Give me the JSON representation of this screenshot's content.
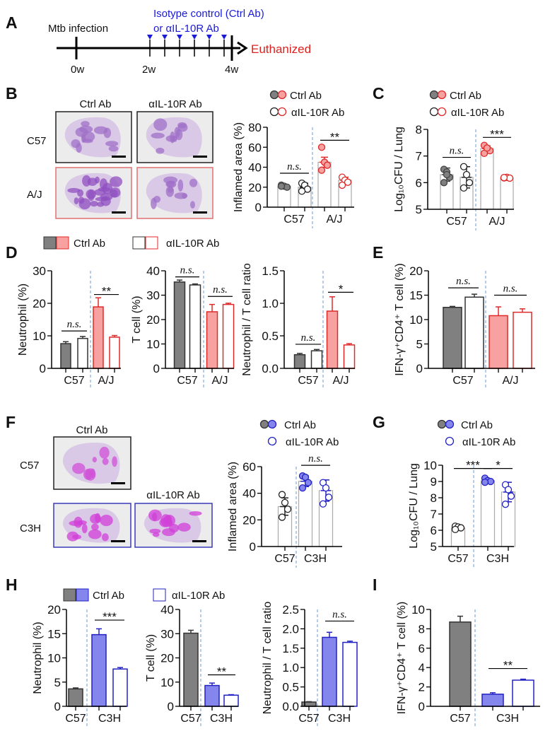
{
  "panel_letters": [
    "A",
    "B",
    "C",
    "D",
    "E",
    "F",
    "G",
    "H",
    "I"
  ],
  "timeline": {
    "infection_label": "Mtb infection",
    "treatment_line1": "Isotype control (Ctrl Ab)",
    "treatment_line2": "or αIL-10R Ab",
    "end_label": "Euthanized",
    "ticks": [
      "0w",
      "2w",
      "4w"
    ],
    "colors": {
      "treatment": "#1a1adb",
      "end": "#e0201e"
    }
  },
  "histology_B": {
    "col_labels": [
      "Ctrl Ab",
      "αIL-10R Ab"
    ],
    "row_labels": [
      "C57",
      "A/J"
    ]
  },
  "histology_F": {
    "ctrl_label": "Ctrl Ab",
    "anti_label": "αIL-10R Ab",
    "row_labels": [
      "C57",
      "C3H"
    ]
  },
  "legends": {
    "B": [
      "Ctrl Ab",
      "αIL-10R Ab"
    ],
    "C": [
      "Ctrl Ab",
      "αIL-10R Ab"
    ],
    "D": [
      "Ctrl Ab",
      "αIL-10R Ab"
    ],
    "F": [
      "Ctrl Ab",
      "αIL-10R Ab"
    ],
    "G": [
      "Ctrl Ab",
      "αIL-10R Ab"
    ],
    "H": [
      "Ctrl Ab",
      "αIL-10R Ab"
    ]
  },
  "colors": {
    "c57_ctrl": "#808080",
    "aj_fill": "#f7a1a1",
    "aj_stroke": "#e02a2a",
    "c3h_fill": "#8585ee",
    "c3h_stroke": "#2222c4",
    "divider": "#6b9bd1"
  },
  "chart_data": [
    {
      "id": "B",
      "type": "bar",
      "style": "dots",
      "ylabel": "Inflamed area  (%)",
      "ylim": [
        0,
        80
      ],
      "yticks": [
        "0",
        "20",
        "40",
        "60",
        "80"
      ],
      "categories": [
        "C57",
        "A/J"
      ],
      "bars": [
        {
          "group": "C57",
          "series": "Ctrl Ab",
          "value": 21,
          "err": 1,
          "color": "#444444",
          "fill": "#808080",
          "points": [
            22,
            21,
            20,
            21
          ]
        },
        {
          "group": "C57",
          "series": "αIL-10R Ab",
          "value": 20,
          "err": 4,
          "color": "#222222",
          "fill": "#ffffff",
          "points": [
            24,
            22,
            18,
            16
          ]
        },
        {
          "group": "A/J",
          "series": "Ctrl Ab",
          "value": 45,
          "err": 5,
          "color": "#e02a2a",
          "fill": "#f7a1a1",
          "points": [
            60,
            45,
            42,
            37
          ]
        },
        {
          "group": "A/J",
          "series": "αIL-10R Ab",
          "value": 27,
          "err": 3,
          "color": "#e02a2a",
          "fill": "#ffffff",
          "points": [
            30,
            27,
            25,
            22
          ]
        }
      ],
      "significance": [
        {
          "from": 0,
          "to": 1,
          "y": 34,
          "label": "n.s."
        },
        {
          "from": 2,
          "to": 3,
          "y": 67,
          "label": "**"
        }
      ]
    },
    {
      "id": "C",
      "type": "bar",
      "style": "dots",
      "ylabel": "Log₁₀CFU / Lung",
      "ylim": [
        5,
        8
      ],
      "yticks": [
        "5",
        "6",
        "7",
        "8"
      ],
      "categories": [
        "C57",
        "A/J"
      ],
      "bars": [
        {
          "group": "C57",
          "series": "Ctrl Ab",
          "value": 6.3,
          "err": 0.25,
          "color": "#444444",
          "fill": "#808080",
          "points": [
            6.5,
            6.4,
            6.2,
            6.0,
            6.3
          ]
        },
        {
          "group": "C57",
          "series": "αIL-10R Ab",
          "value": 6.2,
          "err": 0.4,
          "color": "#222222",
          "fill": "#ffffff",
          "points": [
            6.6,
            6.3,
            6.0,
            5.8
          ]
        },
        {
          "group": "A/J",
          "series": "Ctrl Ab",
          "value": 7.28,
          "err": 0.1,
          "color": "#e02a2a",
          "fill": "#f7a1a1",
          "points": [
            7.4,
            7.3,
            7.2,
            7.1,
            7.3
          ]
        },
        {
          "group": "A/J",
          "series": "αIL-10R Ab",
          "value": 6.18,
          "err": 0.02,
          "color": "#e02a2a",
          "fill": "#ffffff",
          "points": [
            6.18,
            6.2,
            6.17,
            6.19
          ]
        }
      ],
      "significance": [
        {
          "from": 0,
          "to": 1,
          "y": 6.95,
          "label": "n.s."
        },
        {
          "from": 2,
          "to": 3,
          "y": 7.7,
          "label": "***"
        }
      ]
    },
    {
      "id": "D1",
      "type": "bar",
      "style": "solid",
      "ylabel": "Neutrophil (%)",
      "ylim": [
        0,
        30
      ],
      "yticks": [
        "0",
        "10",
        "20",
        "30"
      ],
      "categories": [
        "C57",
        "A/J"
      ],
      "bars": [
        {
          "group": "C57",
          "series": "Ctrl Ab",
          "value": 7.6,
          "err": 0.6,
          "color": "#333333",
          "fill": "#808080"
        },
        {
          "group": "C57",
          "series": "αIL-10R Ab",
          "value": 9.2,
          "err": 0.6,
          "color": "#333333",
          "fill": "#ffffff"
        },
        {
          "group": "A/J",
          "series": "Ctrl Ab",
          "value": 18.9,
          "err": 2.8,
          "color": "#e02a2a",
          "fill": "#f7a1a1"
        },
        {
          "group": "A/J",
          "series": "αIL-10R Ab",
          "value": 9.6,
          "err": 0.5,
          "color": "#e02a2a",
          "fill": "#ffffff"
        }
      ],
      "significance": [
        {
          "from": 0,
          "to": 1,
          "y": 11.5,
          "label": "n.s."
        },
        {
          "from": 2,
          "to": 3,
          "y": 22.7,
          "label": "**"
        }
      ]
    },
    {
      "id": "D2",
      "type": "bar",
      "style": "solid",
      "ylabel": "T cell (%)",
      "ylim": [
        0,
        40
      ],
      "yticks": [
        "0",
        "10",
        "20",
        "30",
        "40"
      ],
      "categories": [
        "C57",
        "A/J"
      ],
      "bars": [
        {
          "group": "C57",
          "series": "Ctrl Ab",
          "value": 35.4,
          "err": 0.8,
          "color": "#333333",
          "fill": "#808080"
        },
        {
          "group": "C57",
          "series": "αIL-10R Ab",
          "value": 34.2,
          "err": 0.4,
          "color": "#333333",
          "fill": "#ffffff"
        },
        {
          "group": "A/J",
          "series": "Ctrl Ab",
          "value": 23.2,
          "err": 3.0,
          "color": "#e02a2a",
          "fill": "#f7a1a1"
        },
        {
          "group": "A/J",
          "series": "αIL-10R Ab",
          "value": 26.2,
          "err": 0.5,
          "color": "#e02a2a",
          "fill": "#ffffff"
        }
      ],
      "significance": [
        {
          "from": 0,
          "to": 1,
          "y": 37.5,
          "label": "n.s."
        },
        {
          "from": 2,
          "to": 3,
          "y": 29.5,
          "label": "n.s."
        }
      ]
    },
    {
      "id": "D3",
      "type": "bar",
      "style": "solid",
      "ylabel": "Neutrophil / T cell ratio",
      "ylim": [
        0,
        1.5
      ],
      "yticks": [
        "0.0",
        "0.5",
        "1.0",
        "1.5"
      ],
      "categories": [
        "C57",
        "A/J"
      ],
      "bars": [
        {
          "group": "C57",
          "series": "Ctrl Ab",
          "value": 0.21,
          "err": 0.02,
          "color": "#333333",
          "fill": "#808080"
        },
        {
          "group": "C57",
          "series": "αIL-10R Ab",
          "value": 0.27,
          "err": 0.02,
          "color": "#333333",
          "fill": "#ffffff"
        },
        {
          "group": "A/J",
          "series": "Ctrl Ab",
          "value": 0.88,
          "err": 0.22,
          "color": "#e02a2a",
          "fill": "#f7a1a1"
        },
        {
          "group": "A/J",
          "series": "αIL-10R Ab",
          "value": 0.36,
          "err": 0.02,
          "color": "#e02a2a",
          "fill": "#ffffff"
        }
      ],
      "significance": [
        {
          "from": 0,
          "to": 1,
          "y": 0.37,
          "label": "n.s."
        },
        {
          "from": 2,
          "to": 3,
          "y": 1.17,
          "label": "*"
        }
      ]
    },
    {
      "id": "E",
      "type": "bar",
      "style": "solid",
      "ylabel": "IFN-γ⁺CD4⁺ T cell (%)",
      "ylim": [
        0,
        20
      ],
      "yticks": [
        "0",
        "5",
        "10",
        "15",
        "20"
      ],
      "categories": [
        "C57",
        "A/J"
      ],
      "bars": [
        {
          "group": "C57",
          "series": "Ctrl Ab",
          "value": 12.5,
          "err": 0.2,
          "color": "#333333",
          "fill": "#808080"
        },
        {
          "group": "C57",
          "series": "αIL-10R Ab",
          "value": 14.6,
          "err": 0.6,
          "color": "#333333",
          "fill": "#ffffff"
        },
        {
          "group": "A/J",
          "series": "Ctrl Ab",
          "value": 10.8,
          "err": 1.8,
          "color": "#e02a2a",
          "fill": "#f7a1a1"
        },
        {
          "group": "A/J",
          "series": "αIL-10R Ab",
          "value": 11.5,
          "err": 0.7,
          "color": "#e02a2a",
          "fill": "#ffffff"
        }
      ],
      "significance": [
        {
          "from": 0,
          "to": 1,
          "y": 16.5,
          "label": "n.s."
        },
        {
          "from": 2,
          "to": 3,
          "y": 15.0,
          "label": "n.s."
        }
      ]
    },
    {
      "id": "F",
      "type": "bar",
      "style": "dots",
      "ylabel": "Inflamed area  (%)",
      "ylim": [
        0,
        60
      ],
      "yticks": [
        "0",
        "20",
        "40",
        "60"
      ],
      "categories": [
        "C57",
        "C3H"
      ],
      "bars": [
        {
          "group": "C57",
          "series": "Ctrl Ab",
          "value": 30,
          "err": 6.5,
          "color": "#222222",
          "fill": "#ffffff",
          "points": [
            39,
            33,
            28,
            22
          ]
        },
        {
          "group": "C3H",
          "series": "Ctrl Ab",
          "value": 49,
          "err": 4,
          "color": "#2222c4",
          "fill": "#8585ee",
          "points": [
            53,
            52,
            48,
            44
          ]
        },
        {
          "group": "C3H",
          "series": "αIL-10R Ab",
          "value": 42,
          "err": 8,
          "color": "#2222c4",
          "fill": "#ffffff",
          "points": [
            48,
            44,
            37,
            32
          ]
        }
      ],
      "significance": [
        {
          "from": 1,
          "to": 2,
          "y": 61,
          "label": "n.s."
        }
      ]
    },
    {
      "id": "G",
      "type": "bar",
      "style": "dots",
      "ylabel": "Log₁₀CFU / Lung",
      "ylim": [
        5,
        10
      ],
      "yticks": [
        "5",
        "6",
        "7",
        "8",
        "9",
        "10"
      ],
      "categories": [
        "C57",
        "C3H"
      ],
      "bars": [
        {
          "group": "C57",
          "series": "Ctrl Ab",
          "value": 6.15,
          "err": 0.1,
          "color": "#222222",
          "fill": "#ffffff",
          "points": [
            6.25,
            6.2,
            6.15,
            6.05
          ]
        },
        {
          "group": "C3H",
          "series": "Ctrl Ab",
          "value": 9.05,
          "err": 0.1,
          "color": "#2222c4",
          "fill": "#8585ee",
          "points": [
            9.2,
            9.05,
            9.0,
            8.95
          ]
        },
        {
          "group": "C3H",
          "series": "αIL-10R Ab",
          "value": 8.35,
          "err": 0.6,
          "color": "#2222c4",
          "fill": "#ffffff",
          "points": [
            8.8,
            8.5,
            8.1,
            7.6
          ]
        }
      ],
      "significance": [
        {
          "from": 0,
          "to": 1,
          "y": 9.8,
          "label": "***"
        },
        {
          "from": 1,
          "to": 2,
          "y": 9.8,
          "label": "*"
        }
      ]
    },
    {
      "id": "H1",
      "type": "bar",
      "style": "solid",
      "ylabel": "Neutrophil (%)",
      "ylim": [
        0,
        20
      ],
      "yticks": [
        "0",
        "5",
        "10",
        "15",
        "20"
      ],
      "categories": [
        "C57",
        "C3H"
      ],
      "bars": [
        {
          "group": "C57",
          "series": "Ctrl Ab",
          "value": 3.6,
          "err": 0.2,
          "color": "#333333",
          "fill": "#808080"
        },
        {
          "group": "C3H",
          "series": "Ctrl Ab",
          "value": 14.8,
          "err": 1.2,
          "color": "#2222c4",
          "fill": "#8585ee"
        },
        {
          "group": "C3H",
          "series": "αIL-10R Ab",
          "value": 7.7,
          "err": 0.3,
          "color": "#2222c4",
          "fill": "#ffffff"
        }
      ],
      "significance": [
        {
          "from": 1,
          "to": 2,
          "y": 17.8,
          "label": "***"
        }
      ]
    },
    {
      "id": "H2",
      "type": "bar",
      "style": "solid",
      "ylabel": "T cell  (%)",
      "ylim": [
        0,
        40
      ],
      "yticks": [
        "0",
        "10",
        "20",
        "30",
        "40"
      ],
      "categories": [
        "C57",
        "C3H"
      ],
      "bars": [
        {
          "group": "C57",
          "series": "Ctrl Ab",
          "value": 30.2,
          "err": 1.2,
          "color": "#333333",
          "fill": "#808080"
        },
        {
          "group": "C3H",
          "series": "Ctrl Ab",
          "value": 8.6,
          "err": 1.0,
          "color": "#2222c4",
          "fill": "#8585ee"
        },
        {
          "group": "C3H",
          "series": "αIL-10R Ab",
          "value": 4.6,
          "err": 0.2,
          "color": "#2222c4",
          "fill": "#ffffff"
        }
      ],
      "significance": [
        {
          "from": 1,
          "to": 2,
          "y": 13,
          "label": "**"
        }
      ]
    },
    {
      "id": "H3",
      "type": "bar",
      "style": "solid",
      "ylabel": "Neutrophil / T cell ratio",
      "ylim": [
        0,
        2.5
      ],
      "yticks": [
        "0.0",
        "0.5",
        "1.0",
        "1.5",
        "2.0",
        "2.5"
      ],
      "categories": [
        "C57",
        "C3H"
      ],
      "bars": [
        {
          "group": "C57",
          "series": "Ctrl Ab",
          "value": 0.11,
          "err": 0.01,
          "color": "#333333",
          "fill": "#808080"
        },
        {
          "group": "C3H",
          "series": "Ctrl Ab",
          "value": 1.78,
          "err": 0.13,
          "color": "#2222c4",
          "fill": "#8585ee"
        },
        {
          "group": "C3H",
          "series": "αIL-10R Ab",
          "value": 1.65,
          "err": 0.03,
          "color": "#2222c4",
          "fill": "#ffffff"
        }
      ],
      "significance": [
        {
          "from": 1,
          "to": 2,
          "y": 2.2,
          "label": "n.s."
        }
      ]
    },
    {
      "id": "I",
      "type": "bar",
      "style": "solid",
      "ylabel": "IFN-γ⁺CD4⁺ T cell (%)",
      "ylim": [
        0,
        10
      ],
      "yticks": [
        "0",
        "2",
        "4",
        "6",
        "8",
        "10"
      ],
      "categories": [
        "C57",
        "C3H"
      ],
      "bars": [
        {
          "group": "C57",
          "series": "Ctrl Ab",
          "value": 8.7,
          "err": 0.6,
          "color": "#333333",
          "fill": "#808080"
        },
        {
          "group": "C3H",
          "series": "Ctrl Ab",
          "value": 1.25,
          "err": 0.15,
          "color": "#2222c4",
          "fill": "#8585ee"
        },
        {
          "group": "C3H",
          "series": "αIL-10R Ab",
          "value": 2.7,
          "err": 0.1,
          "color": "#2222c4",
          "fill": "#ffffff"
        }
      ],
      "significance": [
        {
          "from": 1,
          "to": 2,
          "y": 3.9,
          "label": "**"
        }
      ]
    }
  ]
}
